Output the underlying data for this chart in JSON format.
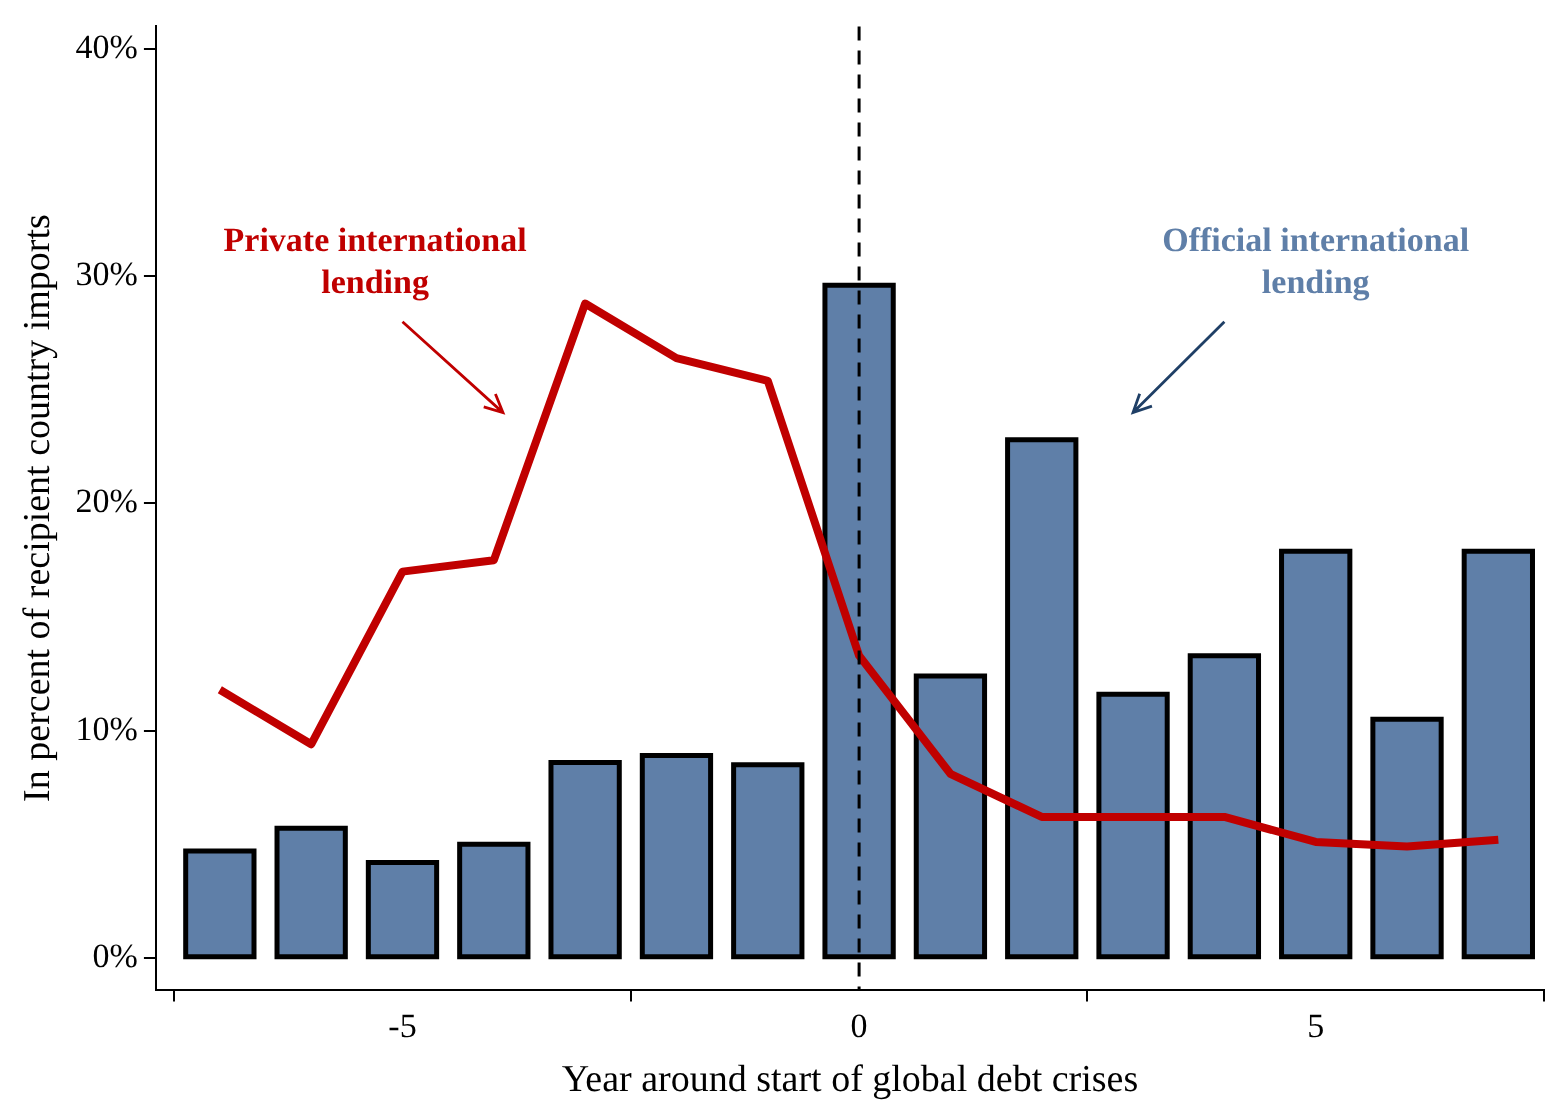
{
  "chart_data": {
    "type": "bar",
    "xlabel": "Year around start of global debt crises",
    "ylabel": "In percent of recipient country imports",
    "x": [
      -7,
      -6,
      -5,
      -4,
      -3,
      -2,
      -1,
      0,
      1,
      2,
      3,
      4,
      5,
      6,
      7
    ],
    "series": [
      {
        "name": "Official international lending",
        "color": "#5f7fa8",
        "values": [
          4.7,
          5.7,
          4.2,
          5.0,
          8.6,
          8.9,
          8.5,
          29.6,
          12.4,
          22.8,
          11.6,
          13.3,
          17.9,
          10.5,
          17.9
        ]
      },
      {
        "name": "Private international lending",
        "type": "line",
        "color": "#c00000",
        "values": [
          11.8,
          9.4,
          17.0,
          17.5,
          28.8,
          26.4,
          25.4,
          13.3,
          8.1,
          6.2,
          6.2,
          6.2,
          5.1,
          4.9,
          5.2
        ]
      }
    ],
    "xlim": [
      -7.7,
      7.5
    ],
    "xticks": [
      -5,
      0,
      5
    ],
    "ylim": [
      -1.4,
      41
    ],
    "yticks": [
      {
        "value": 0,
        "label": "0%"
      },
      {
        "value": 10,
        "label": "10%"
      },
      {
        "value": 20,
        "label": "20%"
      },
      {
        "value": 30,
        "label": "30%"
      },
      {
        "value": 40,
        "label": "40%"
      }
    ],
    "ref_lines": [
      {
        "axis": "x",
        "value": 0,
        "line_style": "dashed",
        "color": "#000000"
      }
    ],
    "grid": false,
    "legend": false,
    "marker": "none"
  }
}
